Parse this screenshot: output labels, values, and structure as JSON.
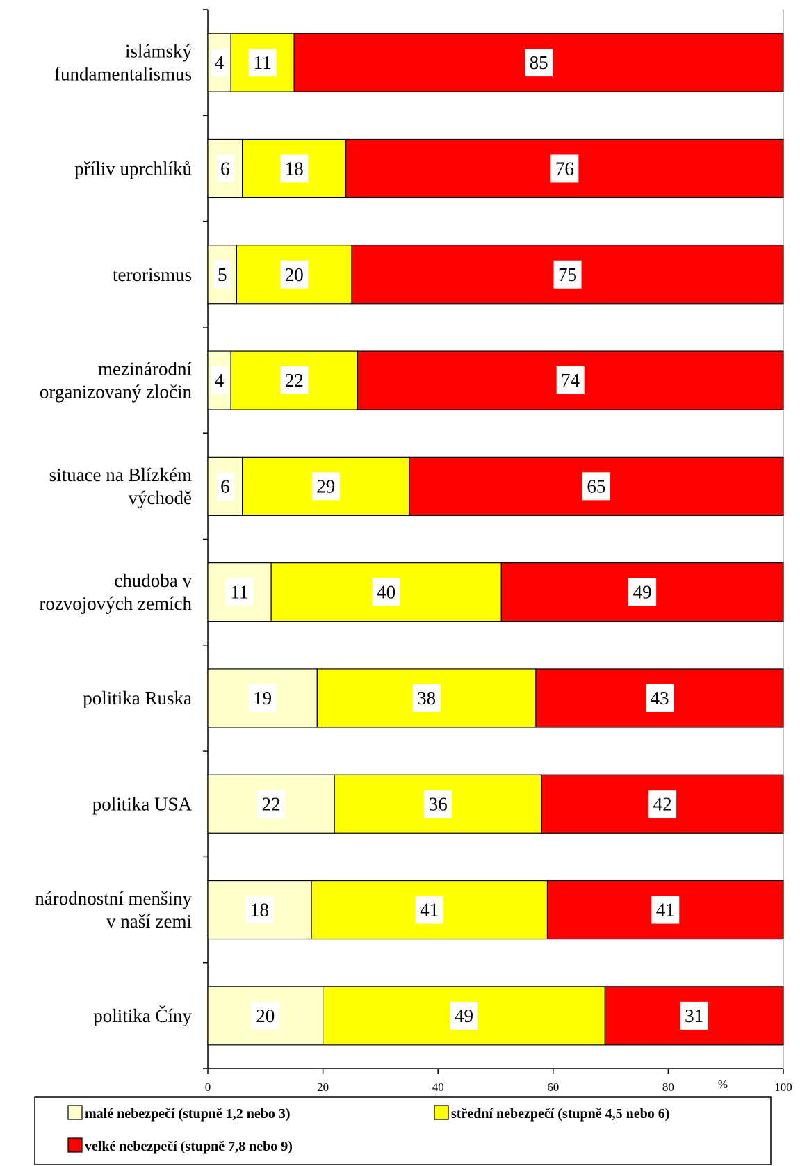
{
  "chart_data": {
    "type": "bar",
    "orientation": "horizontal",
    "stacked": true,
    "percent_stacked": true,
    "categories": [
      [
        "islámský",
        "fundamentalismus"
      ],
      [
        "příliv uprchlíků"
      ],
      [
        "terorismus"
      ],
      [
        "mezinárodní",
        "organizovaný zločin"
      ],
      [
        "situace na Blízkém",
        "východě"
      ],
      [
        "chudoba v",
        "rozvojových zemích"
      ],
      [
        "politika Ruska"
      ],
      [
        "politika USA"
      ],
      [
        "národnostní menšiny",
        "v naší zemi"
      ],
      [
        "politika Číny"
      ]
    ],
    "series": [
      {
        "name": "malé nebezpečí (stupně 1,2 nebo 3)",
        "color": "#FFFFCC",
        "values": [
          4,
          6,
          5,
          4,
          6,
          11,
          19,
          22,
          18,
          20
        ]
      },
      {
        "name": "střední nebezpečí (stupně 4,5 nebo 6)",
        "color": "#FFFF00",
        "values": [
          11,
          18,
          20,
          22,
          29,
          40,
          38,
          36,
          41,
          49
        ]
      },
      {
        "name": "velké nebezpečí (stupně 7,8 nebo 9)",
        "color": "#FF0000",
        "values": [
          85,
          76,
          75,
          74,
          65,
          49,
          43,
          42,
          41,
          31
        ]
      }
    ],
    "x_ticks": [
      "0",
      "20",
      "40",
      "60",
      "80",
      "100"
    ],
    "x_unit": "%",
    "xlim": [
      0,
      100
    ],
    "grid": false,
    "legend_position": "bottom"
  }
}
